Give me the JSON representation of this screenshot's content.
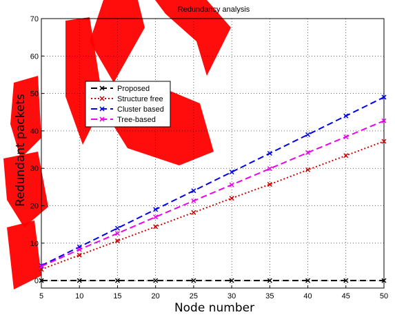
{
  "chart_data": {
    "type": "line",
    "title": "Redundancy analysis",
    "xlabel": "Node number",
    "ylabel": "Redundant packets",
    "x": [
      5,
      10,
      15,
      20,
      25,
      30,
      35,
      40,
      45,
      50
    ],
    "xlim": [
      5,
      50
    ],
    "ylim": [
      -2,
      70
    ],
    "xticks": [
      "5",
      "10",
      "15",
      "20",
      "25",
      "30",
      "35",
      "40",
      "45",
      "50"
    ],
    "yticks": [
      "0",
      "10",
      "20",
      "30",
      "40",
      "50",
      "60",
      "70"
    ],
    "grid": true,
    "legend_position": "upper-left",
    "series": [
      {
        "name": "Proposed",
        "color": "#000000",
        "dash": "dashed",
        "marker": "x",
        "values": [
          0,
          0,
          0,
          0,
          0,
          0,
          0,
          0,
          0,
          0
        ]
      },
      {
        "name": "Structure free",
        "color": "#cc0000",
        "dash": "dotted",
        "marker": "x",
        "values": [
          3,
          6.8,
          10.6,
          14.4,
          18.2,
          22,
          25.7,
          29.6,
          33.4,
          37.2
        ]
      },
      {
        "name": "Cluster based",
        "color": "#0000ee",
        "dash": "dashed",
        "marker": "x",
        "values": [
          4,
          9,
          14,
          19,
          24,
          29,
          34,
          39,
          44,
          49
        ]
      },
      {
        "name": "Tree-based",
        "color": "#ee00ee",
        "dash": "dashed",
        "marker": "x",
        "values": [
          3.8,
          8.3,
          12.6,
          17,
          21.3,
          25.6,
          29.9,
          34.2,
          38.4,
          42.7
        ]
      }
    ]
  }
}
